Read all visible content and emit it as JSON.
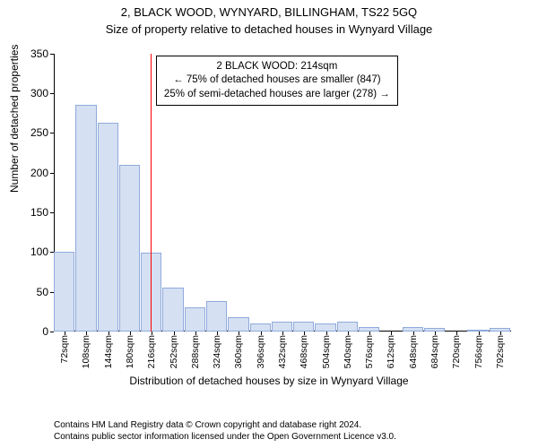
{
  "header": {
    "address": "2, BLACK WOOD, WYNYARD, BILLINGHAM, TS22 5GQ",
    "subtitle": "Size of property relative to detached houses in Wynyard Village"
  },
  "chart": {
    "type": "histogram",
    "ylabel": "Number of detached properties",
    "xlabel": "Distribution of detached houses by size in Wynyard Village",
    "ylim": [
      0,
      350
    ],
    "ytick_step": 50,
    "yticks": [
      0,
      50,
      100,
      150,
      200,
      250,
      300,
      350
    ],
    "xticks": [
      "72sqm",
      "108sqm",
      "144sqm",
      "180sqm",
      "216sqm",
      "252sqm",
      "288sqm",
      "324sqm",
      "360sqm",
      "396sqm",
      "432sqm",
      "468sqm",
      "504sqm",
      "540sqm",
      "576sqm",
      "612sqm",
      "648sqm",
      "684sqm",
      "720sqm",
      "756sqm",
      "792sqm"
    ],
    "bars": [
      100,
      285,
      263,
      210,
      99,
      55,
      30,
      38,
      18,
      10,
      12,
      12,
      10,
      12,
      6,
      0,
      5,
      4,
      0,
      2,
      4
    ],
    "bar_fill": "#d5e0f2",
    "bar_stroke": "#8faadc",
    "background_color": "#ffffff",
    "grid_color": "#e6e6e6",
    "tick_fontsize": 11,
    "label_fontsize": 12,
    "reference_line": {
      "value_sqm": 214,
      "color": "#ff0000"
    },
    "info_box": {
      "line1": "2 BLACK WOOD: 214sqm",
      "line2": "← 75% of detached houses are smaller (847)",
      "line3": "25% of semi-detached houses are larger (278) →"
    }
  },
  "footer": {
    "line1": "Contains HM Land Registry data © Crown copyright and database right 2024.",
    "line2": "Contains public sector information licensed under the Open Government Licence v3.0."
  }
}
